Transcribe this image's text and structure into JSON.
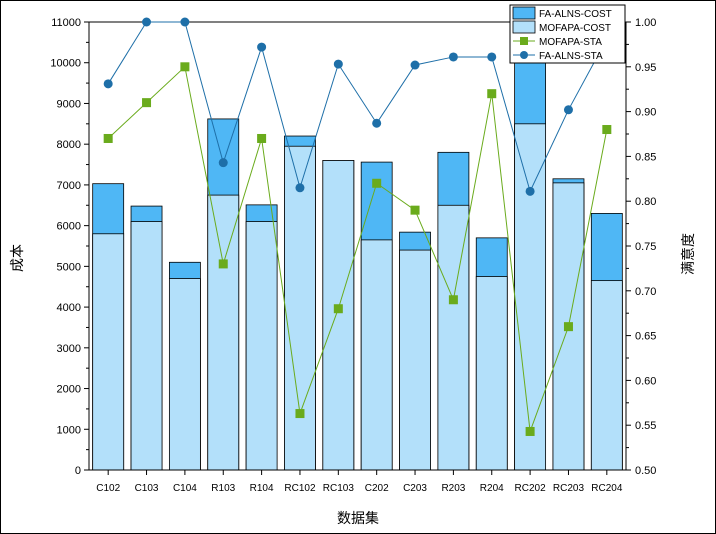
{
  "chart_data": {
    "type": "bar",
    "categories": [
      "C102",
      "C103",
      "C104",
      "R103",
      "R104",
      "RC102",
      "RC103",
      "C202",
      "C203",
      "R203",
      "R204",
      "RC202",
      "RC203",
      "RC204"
    ],
    "series": [
      {
        "name": "MOFAPA-COST",
        "type": "bar",
        "axis": "left",
        "color": "#b3e0fa",
        "values": [
          5800,
          6100,
          4700,
          6750,
          6100,
          7950,
          7600,
          5650,
          5400,
          6500,
          4750,
          8500,
          7050,
          4650
        ]
      },
      {
        "name": "FA-ALNS-COST",
        "type": "bar",
        "axis": "left",
        "color": "#4fb7f5",
        "values": [
          7030,
          6480,
          5100,
          8620,
          6510,
          8200,
          7600,
          7560,
          5840,
          7800,
          5700,
          10450,
          7150,
          6300
        ]
      },
      {
        "name": "MOFAPA-STA",
        "type": "line",
        "axis": "right",
        "color": "#6aab1c",
        "marker": "square",
        "values": [
          0.87,
          0.91,
          0.95,
          0.73,
          0.87,
          0.563,
          0.68,
          0.82,
          0.79,
          0.69,
          0.92,
          0.543,
          0.66,
          0.88
        ]
      },
      {
        "name": "FA-ALNS-STA",
        "type": "line",
        "axis": "right",
        "color": "#1e6fa8",
        "marker": "circle",
        "values": [
          0.931,
          1.0,
          1.0,
          0.843,
          0.972,
          0.815,
          0.953,
          0.887,
          0.952,
          0.961,
          0.961,
          0.811,
          0.902,
          0.981
        ]
      }
    ],
    "xlabel": "数据集",
    "ylabel": "成本",
    "y2label": "满意度",
    "ylim": [
      0,
      11000
    ],
    "y2lim": [
      0.5,
      1.0
    ],
    "yticks": [
      "0",
      "1000",
      "2000",
      "3000",
      "4000",
      "5000",
      "6000",
      "7000",
      "8000",
      "9000",
      "10000",
      "11000"
    ],
    "y2ticks": [
      "0.50",
      "0.55",
      "0.60",
      "0.65",
      "0.70",
      "0.75",
      "0.80",
      "0.85",
      "0.90",
      "0.95",
      "1.00"
    ],
    "legend_order": [
      "FA-ALNS-COST",
      "MOFAPA-COST",
      "MOFAPA-STA",
      "FA-ALNS-STA"
    ],
    "legend_position": "top-right",
    "grid": false
  }
}
